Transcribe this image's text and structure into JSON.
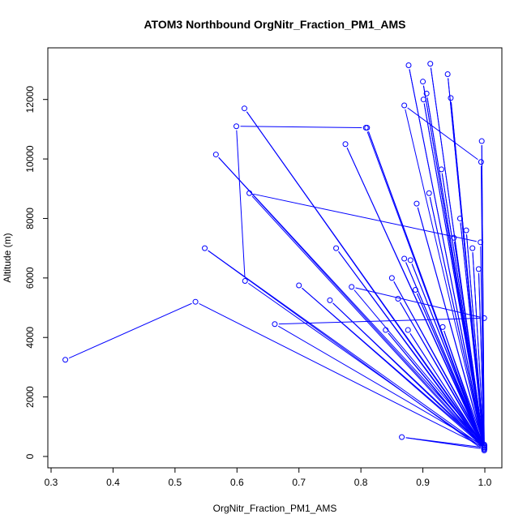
{
  "chart_data": {
    "type": "line",
    "title": "ATOM3 Northbound OrgNitr_Fraction_PM1_AMS",
    "xlabel": "OrgNitr_Fraction_PM1_AMS",
    "ylabel": "Altitude (m)",
    "xlim": [
      0.3,
      1.0
    ],
    "ylim": [
      0,
      13000
    ],
    "x_ticks": [
      0.3,
      0.4,
      0.5,
      0.6,
      0.7,
      0.8,
      0.9,
      1.0
    ],
    "x_tick_labels": [
      "0.3",
      "0.4",
      "0.5",
      "0.6",
      "0.7",
      "0.8",
      "0.9",
      "1.0"
    ],
    "y_ticks": [
      0,
      2000,
      4000,
      6000,
      8000,
      10000,
      12000
    ],
    "y_tick_labels": [
      "0",
      "2000",
      "4000",
      "6000",
      "8000",
      "10000",
      "12000"
    ],
    "grid": false,
    "marker": "open-circle",
    "color": "#0000ff",
    "series": [
      {
        "x": [
          0.323,
          0.533,
          0.999,
          0.548,
          0.999,
          0.993,
          0.62,
          0.999,
          0.81,
          0.999,
          0.566,
          0.999,
          0.932,
          0.999,
          0.866,
          0.999,
          0.612,
          0.999,
          0.999,
          0.613,
          0.599,
          0.808,
          0.999,
          0.994,
          0.87,
          0.999,
          0.775,
          0.999,
          0.9,
          0.999,
          0.901,
          0.999,
          0.661,
          0.999,
          0.785,
          0.999,
          0.85,
          0.999,
          0.87,
          0.999,
          0.75,
          0.999,
          0.7,
          0.999,
          0.76,
          0.999,
          0.84,
          0.999,
          0.86,
          0.999,
          0.877,
          0.999,
          0.88,
          0.999,
          0.89,
          0.999,
          0.906,
          0.999,
          0.91,
          0.999,
          0.876,
          0.999,
          0.888,
          0.999,
          0.912,
          0.999,
          0.93,
          0.999,
          0.94,
          0.999,
          0.945,
          0.999,
          0.95,
          0.999,
          0.96,
          0.999,
          0.97,
          0.999,
          0.98,
          0.999,
          0.99,
          0.999,
          0.995,
          0.999
        ],
        "y": [
          3250,
          5200,
          300,
          7000,
          200,
          7200,
          8850,
          250,
          11050,
          300,
          10150,
          400,
          4350,
          250,
          650,
          300,
          11700,
          350,
          250,
          5900,
          11100,
          11050,
          250,
          9900,
          11800,
          300,
          10500,
          250,
          12600,
          300,
          12000,
          350,
          4450,
          4650,
          5700,
          400,
          6000,
          350,
          6650,
          300,
          5250,
          350,
          5750,
          300,
          7000,
          250,
          4250,
          300,
          5300,
          350,
          13150,
          300,
          6600,
          350,
          8500,
          300,
          12200,
          350,
          8850,
          300,
          4250,
          300,
          5600,
          250,
          13200,
          300,
          9650,
          250,
          12850,
          300,
          12050,
          350,
          7350,
          300,
          8000,
          250,
          7600,
          300,
          7000,
          350,
          6300,
          300,
          10600,
          350
        ]
      }
    ]
  }
}
